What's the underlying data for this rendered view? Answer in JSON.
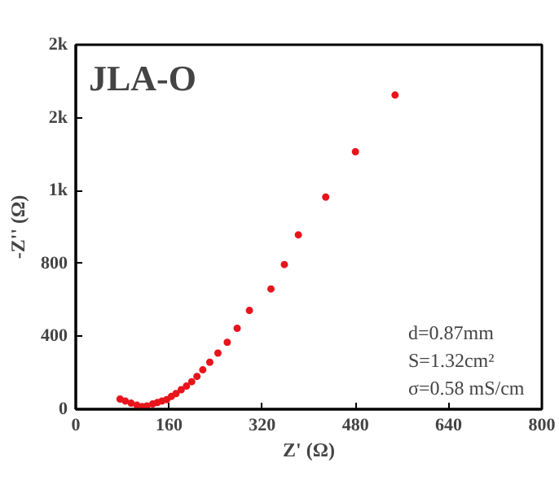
{
  "chart_data": {
    "type": "scatter",
    "title": "JLA-O",
    "xlabel": "Z' (Ω)",
    "ylabel": "-Z'' (Ω)",
    "x": [
      76,
      85,
      95,
      105,
      114,
      122,
      132,
      140,
      148,
      156,
      164,
      172,
      181,
      190,
      199,
      208,
      218,
      230,
      244,
      260,
      277,
      298,
      335,
      358,
      382,
      429,
      480,
      548
    ],
    "series": [
      {
        "color": "#e8141c",
        "values": [
          56,
          45,
          33,
          22,
          15,
          18,
          29,
          37,
          45,
          53,
          70,
          86,
          107,
          127,
          151,
          180,
          216,
          258,
          308,
          367,
          444,
          542,
          660,
          794,
          957,
          1164,
          1413,
          1724
        ]
      }
    ],
    "xlim": [
      0,
      800
    ],
    "xticks": [
      0,
      160,
      320,
      480,
      640,
      800
    ],
    "ylim": [
      0,
      2000
    ],
    "yticks": [
      0,
      400,
      800,
      {
        "value": 1200,
        "label": "1k"
      },
      {
        "value": 1600,
        "label": "2k"
      },
      {
        "value": 2000,
        "label": "2k"
      }
    ],
    "annotations": [
      "d=0.87mm",
      "S=1.32cm²",
      "σ=0.58 mS/cm"
    ],
    "marker": "circle"
  }
}
